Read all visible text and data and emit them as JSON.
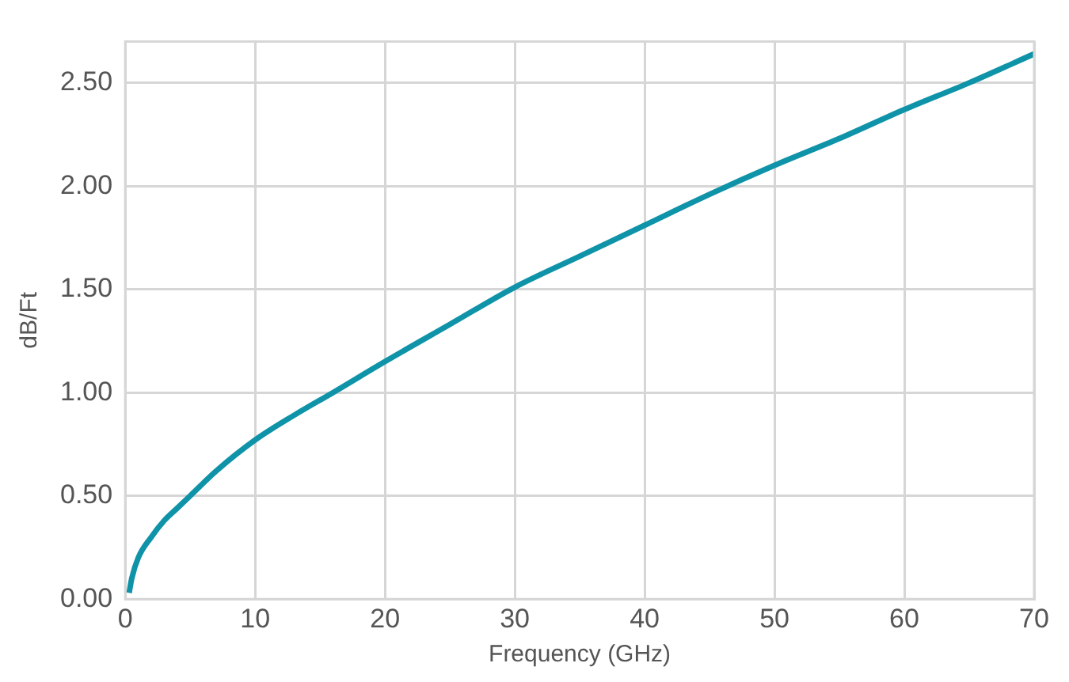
{
  "chart_data": {
    "type": "line",
    "xlabel": "Frequency (GHz)",
    "ylabel": "dB/Ft",
    "x": [
      0.3,
      0.5,
      1,
      2,
      3,
      4,
      5,
      7,
      10,
      13,
      16,
      20,
      25,
      30,
      35,
      40,
      45,
      50,
      55,
      60,
      65,
      70
    ],
    "series": [
      {
        "color": "#0f93a8",
        "values": [
          0.03,
          0.1,
          0.2,
          0.3,
          0.38,
          0.44,
          0.5,
          0.62,
          0.77,
          0.89,
          1.0,
          1.15,
          1.33,
          1.51,
          1.66,
          1.81,
          1.96,
          2.1,
          2.23,
          2.37,
          2.5,
          2.64
        ]
      }
    ],
    "xlim": [
      0,
      70
    ],
    "xticks": [
      0,
      10,
      20,
      30,
      40,
      50,
      60,
      70
    ],
    "ylim": [
      0,
      2.7
    ],
    "yticks": [
      {
        "value": 0,
        "label": "0.00"
      },
      {
        "value": 0.5,
        "label": "0.50"
      },
      {
        "value": 1,
        "label": "1.00"
      },
      {
        "value": 1.5,
        "label": "1.50"
      },
      {
        "value": 2,
        "label": "2.00"
      },
      {
        "value": 2.5,
        "label": "2.50"
      }
    ],
    "grid": true,
    "legend": false,
    "marker": "none",
    "line_style": "solid"
  }
}
